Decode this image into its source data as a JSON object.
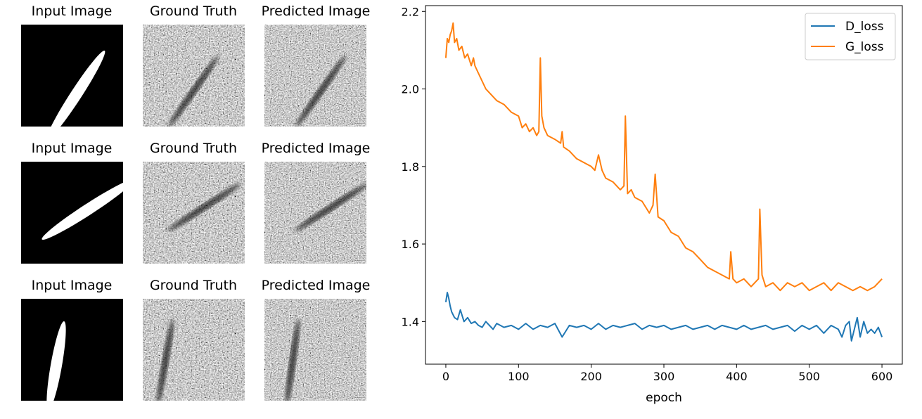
{
  "figure": {
    "rows": [
      {
        "input_title": "Input Image",
        "truth_title": "Ground Truth",
        "pred_title": "Predicted Image",
        "ellipse_angle_deg": -57,
        "truth_streak_angle_deg": -55,
        "pred_streak_angle_deg": -55
      },
      {
        "input_title": "Input Image",
        "truth_title": "Ground Truth",
        "pred_title": "Predicted Image",
        "ellipse_angle_deg": -33,
        "truth_streak_angle_deg": -33,
        "pred_streak_angle_deg": -33
      },
      {
        "input_title": "Input Image",
        "truth_title": "Ground Truth",
        "pred_title": "Predicted Image",
        "ellipse_angle_deg": -80,
        "truth_streak_angle_deg": -80,
        "pred_streak_angle_deg": -82
      }
    ]
  },
  "chart_data": {
    "type": "line",
    "xlabel": "epoch",
    "ylabel": "",
    "xlim": [
      -28,
      628
    ],
    "ylim": [
      1.29,
      2.215
    ],
    "xticks": [
      0,
      100,
      200,
      300,
      400,
      500,
      600
    ],
    "yticks": [
      1.4,
      1.6,
      1.8,
      2.0,
      2.2
    ],
    "ytick_labels": [
      "1.4",
      "1.6",
      "1.8",
      "2.0",
      "2.2"
    ],
    "grid": false,
    "legend_position": "top-right",
    "series": [
      {
        "name": "D_loss",
        "color": "#1f77b4",
        "x": [
          0,
          2,
          4,
          6,
          8,
          12,
          16,
          20,
          25,
          30,
          35,
          40,
          45,
          50,
          55,
          60,
          65,
          70,
          80,
          90,
          100,
          110,
          120,
          130,
          140,
          150,
          160,
          170,
          180,
          190,
          200,
          210,
          220,
          230,
          240,
          250,
          260,
          270,
          280,
          290,
          300,
          310,
          320,
          330,
          340,
          350,
          360,
          370,
          380,
          390,
          400,
          410,
          420,
          430,
          440,
          450,
          460,
          470,
          480,
          490,
          500,
          510,
          520,
          530,
          540,
          545,
          550,
          555,
          558,
          562,
          566,
          570,
          575,
          580,
          585,
          590,
          595,
          600
        ],
        "y": [
          1.45,
          1.475,
          1.46,
          1.44,
          1.425,
          1.41,
          1.405,
          1.43,
          1.4,
          1.41,
          1.395,
          1.4,
          1.39,
          1.385,
          1.4,
          1.39,
          1.38,
          1.395,
          1.385,
          1.39,
          1.38,
          1.395,
          1.38,
          1.39,
          1.385,
          1.395,
          1.36,
          1.39,
          1.385,
          1.39,
          1.38,
          1.395,
          1.38,
          1.39,
          1.385,
          1.39,
          1.395,
          1.38,
          1.39,
          1.385,
          1.39,
          1.38,
          1.385,
          1.39,
          1.38,
          1.385,
          1.39,
          1.38,
          1.39,
          1.385,
          1.38,
          1.39,
          1.38,
          1.385,
          1.39,
          1.38,
          1.385,
          1.39,
          1.375,
          1.39,
          1.38,
          1.39,
          1.37,
          1.39,
          1.38,
          1.36,
          1.39,
          1.4,
          1.35,
          1.38,
          1.41,
          1.36,
          1.4,
          1.37,
          1.38,
          1.37,
          1.385,
          1.36
        ]
      },
      {
        "name": "G_loss",
        "color": "#ff7f0e",
        "x": [
          0,
          2,
          4,
          6,
          8,
          10,
          12,
          15,
          18,
          22,
          26,
          30,
          35,
          38,
          40,
          45,
          50,
          55,
          60,
          70,
          80,
          90,
          100,
          105,
          110,
          115,
          120,
          125,
          128,
          130,
          132,
          135,
          140,
          150,
          158,
          160,
          162,
          170,
          180,
          190,
          200,
          205,
          210,
          215,
          220,
          230,
          240,
          245,
          247,
          250,
          255,
          260,
          270,
          280,
          285,
          288,
          292,
          300,
          310,
          320,
          330,
          340,
          350,
          360,
          370,
          380,
          390,
          392,
          395,
          400,
          410,
          420,
          430,
          432,
          435,
          440,
          450,
          460,
          470,
          480,
          490,
          500,
          510,
          520,
          530,
          540,
          550,
          560,
          570,
          580,
          590,
          595,
          600
        ],
        "y": [
          2.08,
          2.13,
          2.12,
          2.14,
          2.15,
          2.17,
          2.12,
          2.13,
          2.1,
          2.11,
          2.08,
          2.09,
          2.06,
          2.08,
          2.06,
          2.04,
          2.02,
          2.0,
          1.99,
          1.97,
          1.96,
          1.94,
          1.93,
          1.9,
          1.91,
          1.89,
          1.9,
          1.88,
          1.89,
          2.08,
          1.93,
          1.9,
          1.88,
          1.87,
          1.86,
          1.89,
          1.85,
          1.84,
          1.82,
          1.81,
          1.8,
          1.79,
          1.83,
          1.79,
          1.77,
          1.76,
          1.74,
          1.75,
          1.93,
          1.73,
          1.74,
          1.72,
          1.71,
          1.68,
          1.7,
          1.78,
          1.67,
          1.66,
          1.63,
          1.62,
          1.59,
          1.58,
          1.56,
          1.54,
          1.53,
          1.52,
          1.51,
          1.58,
          1.51,
          1.5,
          1.51,
          1.49,
          1.51,
          1.69,
          1.52,
          1.49,
          1.5,
          1.48,
          1.5,
          1.49,
          1.5,
          1.48,
          1.49,
          1.5,
          1.48,
          1.5,
          1.49,
          1.48,
          1.49,
          1.48,
          1.49,
          1.5,
          1.51
        ]
      }
    ]
  }
}
